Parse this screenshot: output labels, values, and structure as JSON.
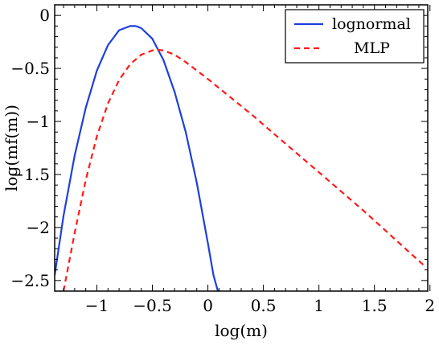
{
  "chart_data": {
    "type": "line",
    "xlabel": "log(m)",
    "ylabel": "log(mf(m))",
    "xlim": [
      -1.38,
      1.98
    ],
    "ylim": [
      -2.6,
      0.1
    ],
    "x_ticks": [
      -1,
      -0.5,
      0,
      0.5,
      1,
      1.5,
      2
    ],
    "x_tick_labels": [
      "−1",
      "−0.5",
      "0",
      "0.5",
      "1",
      "1.5",
      "2"
    ],
    "y_ticks": [
      0,
      -0.5,
      -1,
      -1.5,
      -2,
      -2.5
    ],
    "y_tick_labels": [
      "0",
      "−0.5",
      "−1",
      "−1.5",
      "−2",
      "−2.5"
    ],
    "grid": false,
    "legend_position": "top-right",
    "series": [
      {
        "name": "lognormal",
        "color": "#1f3fdb",
        "style": "solid",
        "x": [
          -1.38,
          -1.3,
          -1.2,
          -1.1,
          -1.0,
          -0.9,
          -0.8,
          -0.7,
          -0.65,
          -0.6,
          -0.5,
          -0.4,
          -0.3,
          -0.2,
          -0.1,
          0.0,
          0.05,
          0.09
        ],
        "y": [
          -2.45,
          -1.89,
          -1.32,
          -0.87,
          -0.52,
          -0.28,
          -0.14,
          -0.1,
          -0.1,
          -0.12,
          -0.22,
          -0.42,
          -0.72,
          -1.1,
          -1.58,
          -2.15,
          -2.45,
          -2.6
        ]
      },
      {
        "name": "MLP",
        "color": "#ff1a1a",
        "style": "dashed",
        "x": [
          -1.3,
          -1.2,
          -1.1,
          -1.0,
          -0.9,
          -0.8,
          -0.7,
          -0.6,
          -0.5,
          -0.45,
          -0.4,
          -0.3,
          -0.2,
          -0.1,
          0.0,
          0.2,
          0.4,
          0.6,
          0.8,
          1.0,
          1.2,
          1.4,
          1.6,
          1.8,
          1.96
        ],
        "y": [
          -2.6,
          -2.05,
          -1.55,
          -1.14,
          -0.83,
          -0.61,
          -0.46,
          -0.37,
          -0.33,
          -0.325,
          -0.33,
          -0.37,
          -0.44,
          -0.52,
          -0.6,
          -0.77,
          -0.94,
          -1.12,
          -1.3,
          -1.48,
          -1.66,
          -1.84,
          -2.03,
          -2.22,
          -2.37
        ]
      }
    ]
  }
}
